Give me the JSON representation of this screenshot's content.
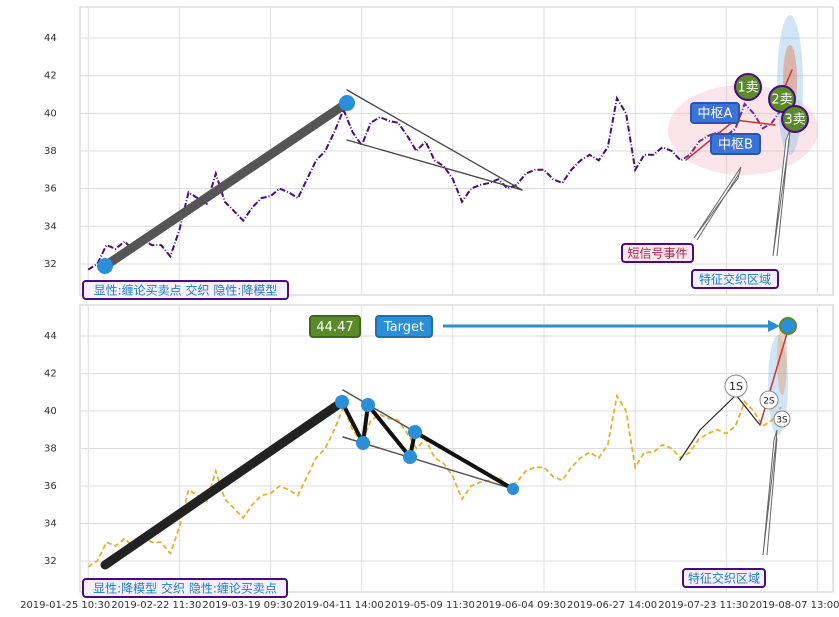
{
  "chart_data": [
    {
      "type": "line",
      "color": "#4b0b7c",
      "ylim": [
        30.35,
        45.65
      ],
      "yticks": [
        32,
        34,
        36,
        38,
        40,
        42,
        44
      ],
      "grid": true,
      "values": [
        31.7,
        32.0,
        33.0,
        32.8,
        33.2,
        32.7,
        33.3,
        33.0,
        33.0,
        32.4,
        33.8,
        35.8,
        35.5,
        35.2,
        36.8,
        35.3,
        34.8,
        34.3,
        35.0,
        35.5,
        35.6,
        36.0,
        35.8,
        35.5,
        36.5,
        37.5,
        38.0,
        39.0,
        40.2,
        39.0,
        38.3,
        39.5,
        39.8,
        39.6,
        39.5,
        38.8,
        38.0,
        38.5,
        37.5,
        37.2,
        36.5,
        35.3,
        36.0,
        36.2,
        36.3,
        36.5,
        36.0,
        36.2,
        36.8,
        37.0,
        37.0,
        36.5,
        36.3,
        37.0,
        37.5,
        37.8,
        37.5,
        38.2,
        40.8,
        40.0,
        37.0,
        37.8,
        37.8,
        38.2,
        38.0,
        37.5,
        37.8,
        38.5,
        38.8,
        39.0,
        38.8,
        39.2,
        40.5,
        40.0,
        39.2,
        39.5,
        40.2
      ],
      "annotations": [
        "显性:缠论买卖点 交织 隐性:降模型",
        "中枢A",
        "中枢B",
        "1卖",
        "2卖",
        "3卖",
        "短信号事件",
        "特征交织区域"
      ]
    },
    {
      "type": "line",
      "color": "#e8b030",
      "ylim": [
        30.35,
        45.65
      ],
      "yticks": [
        32,
        34,
        36,
        38,
        40,
        42,
        44
      ],
      "grid": true,
      "xlim": [
        -0.9,
        81.7
      ],
      "xticks": [
        {
          "value": 0,
          "label": "2019-01-25 10:30"
        },
        {
          "value": 10,
          "label": "2019-02-22 11:30"
        },
        {
          "value": 20,
          "label": "2019-03-19 09:30"
        },
        {
          "value": 30,
          "label": "2019-04-11 14:00"
        },
        {
          "value": 40,
          "label": "2019-05-09 11:30"
        },
        {
          "value": 50,
          "label": "2019-06-04 09:30"
        },
        {
          "value": 60,
          "label": "2019-06-27 14:00"
        },
        {
          "value": 70,
          "label": "2019-07-23 11:30"
        },
        {
          "value": 80,
          "label": "2019-08-07 13:00"
        }
      ],
      "values": [
        31.7,
        32.0,
        33.0,
        32.8,
        33.2,
        32.7,
        33.3,
        33.0,
        33.0,
        32.4,
        33.8,
        35.8,
        35.5,
        35.2,
        36.8,
        35.3,
        34.8,
        34.3,
        35.0,
        35.5,
        35.6,
        36.0,
        35.8,
        35.5,
        36.5,
        37.5,
        38.0,
        39.0,
        40.2,
        39.0,
        38.3,
        39.5,
        39.8,
        39.6,
        39.5,
        38.8,
        38.0,
        38.5,
        37.5,
        37.2,
        36.5,
        35.3,
        36.0,
        36.2,
        36.3,
        36.5,
        36.0,
        36.2,
        36.8,
        37.0,
        37.0,
        36.5,
        36.3,
        37.0,
        37.5,
        37.8,
        37.5,
        38.2,
        40.8,
        40.0,
        37.0,
        37.8,
        37.8,
        38.2,
        38.0,
        37.5,
        37.8,
        38.5,
        38.8,
        39.0,
        38.8,
        39.2,
        40.5,
        40.0,
        39.2,
        39.5,
        40.2
      ],
      "annotations": [
        "44.47",
        "Target",
        "1S",
        "2S",
        "3S",
        "特征交织区域",
        "显性:降模型 交织 隐性:缠论买卖点"
      ]
    }
  ]
}
